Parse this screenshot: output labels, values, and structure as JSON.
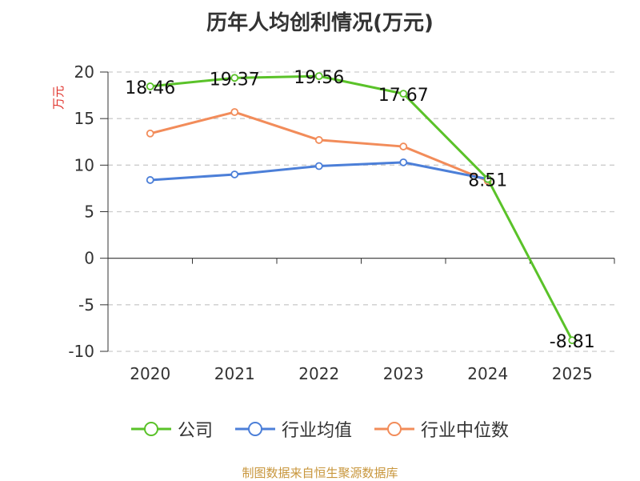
{
  "chart_data": {
    "type": "line",
    "title": "历年人均创利情况(万元)",
    "ylabel": "万元",
    "xlabel": "",
    "categories": [
      "2020",
      "2021",
      "2022",
      "2023",
      "2024",
      "2025"
    ],
    "ylim": [
      -10,
      20
    ],
    "yticks": [
      -10,
      -5,
      0,
      5,
      10,
      15,
      20
    ],
    "grid": true,
    "legend_position": "bottom",
    "series": [
      {
        "name": "公司",
        "color": "#5ac229",
        "values": [
          18.46,
          19.37,
          19.56,
          17.67,
          8.51,
          -8.81
        ],
        "labels": [
          "18.46",
          "19.37",
          "19.56",
          "17.67",
          "8.51",
          "-8.81"
        ]
      },
      {
        "name": "行业均值",
        "color": "#4c7fd8",
        "values": [
          8.4,
          9.0,
          9.9,
          10.3,
          8.5,
          null
        ]
      },
      {
        "name": "行业中位数",
        "color": "#f28c5a",
        "values": [
          13.4,
          15.7,
          12.7,
          12.0,
          8.3,
          null
        ]
      }
    ]
  },
  "source": "制图数据来自恒生聚源数据库"
}
